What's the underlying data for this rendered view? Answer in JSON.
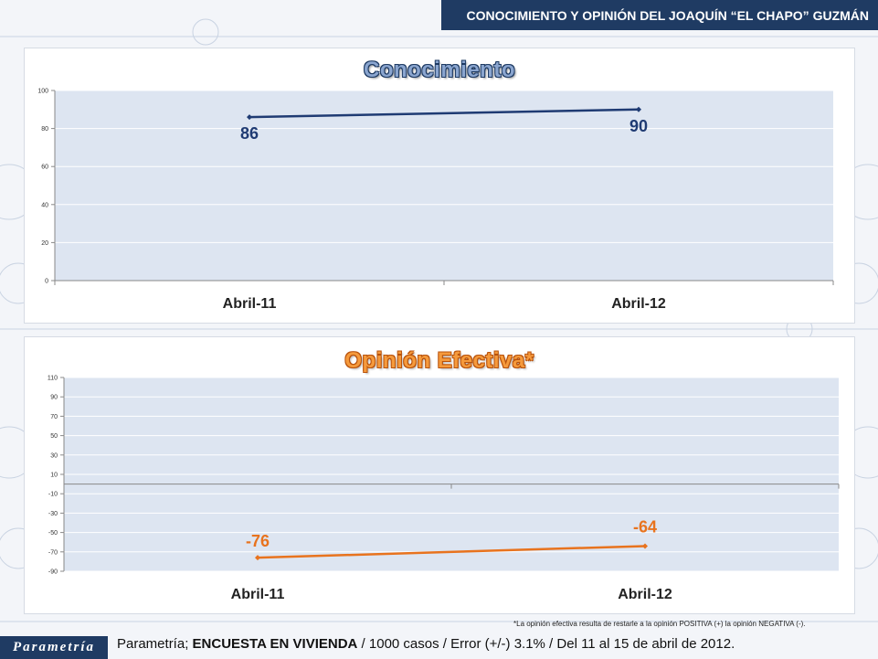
{
  "header": {
    "title": "CONOCIMIENTO Y OPINIÓN DEL JOAQUÍN “EL CHAPO” GUZMÁN"
  },
  "colors": {
    "header_bg": "#1f3b63",
    "series1": "#1f3b73",
    "series2": "#e8731e",
    "plot_bg": "#dde5f1"
  },
  "chart_data": [
    {
      "type": "line",
      "title": "Conocimiento",
      "categories": [
        "Abril-11",
        "Abril-12"
      ],
      "series": [
        {
          "values": [
            86,
            90
          ]
        }
      ],
      "data_labels": [
        "86",
        "90"
      ],
      "ylim": [
        0,
        100
      ],
      "yticks": [
        0,
        20,
        40,
        60,
        80,
        100
      ],
      "grid": true
    },
    {
      "type": "line",
      "title": "Opinión Efectiva*",
      "categories": [
        "Abril-11",
        "Abril-12"
      ],
      "series": [
        {
          "values": [
            -76,
            -64
          ]
        }
      ],
      "data_labels": [
        "-76",
        "-64"
      ],
      "ylim": [
        -90,
        110
      ],
      "yticks": [
        -90,
        -70,
        -50,
        -30,
        -10,
        10,
        30,
        50,
        70,
        90,
        110
      ],
      "grid": true
    }
  ],
  "footnote": "*La opinión efectiva resulta de restarle a la opinión POSITIVA (+) la opinión NEGATIVA (-).",
  "footer": {
    "logo": "Parametría",
    "source_prefix": "Parametría; ",
    "source_bold": "ENCUESTA EN VIVIENDA",
    "source_rest": " / 1000 casos / Error (+/-) 3.1% / Del 11 al 15 de abril de 2012."
  }
}
